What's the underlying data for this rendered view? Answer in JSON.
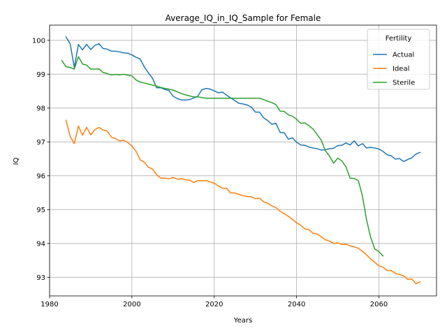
{
  "chart_data": {
    "type": "line",
    "title": "Average_IQ_in_IQ_Sample for Female",
    "xlabel": "Years",
    "ylabel": "IQ",
    "xlim": [
      1980,
      2074
    ],
    "ylim": [
      92.45,
      100.45
    ],
    "xticks": [
      1980,
      2000,
      2020,
      2040,
      2060
    ],
    "yticks": [
      93,
      94,
      95,
      96,
      97,
      98,
      99,
      100
    ],
    "grid": true,
    "legend": {
      "title": "Fertility",
      "placement": "top-right"
    },
    "series": [
      {
        "name": "Actual",
        "color": "#1f77b4",
        "points": [
          [
            1984,
            100.1
          ],
          [
            1985,
            99.9
          ],
          [
            1986,
            99.2
          ],
          [
            1987,
            99.88
          ],
          [
            1988,
            99.72
          ],
          [
            1989,
            99.88
          ],
          [
            1990,
            99.73
          ],
          [
            1991,
            99.85
          ],
          [
            1992,
            99.9
          ],
          [
            1993,
            99.76
          ],
          [
            1994,
            99.74
          ],
          [
            1995,
            99.68
          ],
          [
            1996,
            99.68
          ],
          [
            1997,
            99.66
          ],
          [
            1998,
            99.63
          ],
          [
            1999,
            99.62
          ],
          [
            2000,
            99.57
          ],
          [
            2001,
            99.5
          ],
          [
            2002,
            99.45
          ],
          [
            2003,
            99.22
          ],
          [
            2004,
            99.04
          ],
          [
            2005,
            98.88
          ],
          [
            2006,
            98.6
          ],
          [
            2007,
            98.6
          ],
          [
            2008,
            98.55
          ],
          [
            2009,
            98.52
          ],
          [
            2010,
            98.35
          ],
          [
            2011,
            98.28
          ],
          [
            2012,
            98.24
          ],
          [
            2013,
            98.24
          ],
          [
            2014,
            98.25
          ],
          [
            2015,
            98.3
          ],
          [
            2016,
            98.35
          ],
          [
            2017,
            98.54
          ],
          [
            2018,
            98.58
          ],
          [
            2019,
            98.56
          ],
          [
            2020,
            98.51
          ],
          [
            2021,
            98.45
          ],
          [
            2022,
            98.47
          ],
          [
            2023,
            98.38
          ],
          [
            2024,
            98.3
          ],
          [
            2025,
            98.22
          ],
          [
            2026,
            98.14
          ],
          [
            2027,
            98.12
          ],
          [
            2028,
            98.09
          ],
          [
            2029,
            98.03
          ],
          [
            2030,
            97.88
          ],
          [
            2031,
            97.88
          ],
          [
            2032,
            97.71
          ],
          [
            2033,
            97.63
          ],
          [
            2034,
            97.52
          ],
          [
            2035,
            97.55
          ],
          [
            2036,
            97.28
          ],
          [
            2037,
            97.27
          ],
          [
            2038,
            97.08
          ],
          [
            2039,
            97.12
          ],
          [
            2040,
            96.99
          ],
          [
            2041,
            96.91
          ],
          [
            2042,
            96.9
          ],
          [
            2043,
            96.85
          ],
          [
            2044,
            96.82
          ],
          [
            2045,
            96.8
          ],
          [
            2046,
            96.76
          ],
          [
            2047,
            96.77
          ],
          [
            2048,
            96.8
          ],
          [
            2049,
            96.81
          ],
          [
            2050,
            96.89
          ],
          [
            2051,
            96.9
          ],
          [
            2052,
            96.97
          ],
          [
            2053,
            96.91
          ],
          [
            2054,
            97.03
          ],
          [
            2055,
            96.88
          ],
          [
            2056,
            96.95
          ],
          [
            2057,
            96.82
          ],
          [
            2058,
            96.84
          ],
          [
            2059,
            96.82
          ],
          [
            2060,
            96.79
          ],
          [
            2061,
            96.72
          ],
          [
            2062,
            96.62
          ],
          [
            2063,
            96.59
          ],
          [
            2064,
            96.49
          ],
          [
            2065,
            96.51
          ],
          [
            2066,
            96.42
          ],
          [
            2067,
            96.48
          ],
          [
            2068,
            96.53
          ],
          [
            2069,
            96.64
          ],
          [
            2070,
            96.69
          ]
        ]
      },
      {
        "name": "Ideal",
        "color": "#ff7f0e",
        "points": [
          [
            1984,
            97.64
          ],
          [
            1985,
            97.16
          ],
          [
            1986,
            96.95
          ],
          [
            1987,
            97.47
          ],
          [
            1988,
            97.2
          ],
          [
            1989,
            97.43
          ],
          [
            1990,
            97.21
          ],
          [
            1991,
            97.36
          ],
          [
            1992,
            97.43
          ],
          [
            1993,
            97.35
          ],
          [
            1994,
            97.32
          ],
          [
            1995,
            97.14
          ],
          [
            1996,
            97.1
          ],
          [
            1997,
            97.03
          ],
          [
            1998,
            97.05
          ],
          [
            1999,
            96.98
          ],
          [
            2000,
            96.88
          ],
          [
            2001,
            96.72
          ],
          [
            2002,
            96.47
          ],
          [
            2003,
            96.4
          ],
          [
            2004,
            96.25
          ],
          [
            2005,
            96.2
          ],
          [
            2006,
            96.03
          ],
          [
            2007,
            95.93
          ],
          [
            2008,
            95.93
          ],
          [
            2009,
            95.91
          ],
          [
            2010,
            95.95
          ],
          [
            2011,
            95.9
          ],
          [
            2012,
            95.91
          ],
          [
            2013,
            95.88
          ],
          [
            2014,
            95.87
          ],
          [
            2015,
            95.8
          ],
          [
            2016,
            95.86
          ],
          [
            2017,
            95.85
          ],
          [
            2018,
            95.86
          ],
          [
            2019,
            95.82
          ],
          [
            2020,
            95.78
          ],
          [
            2021,
            95.7
          ],
          [
            2022,
            95.63
          ],
          [
            2023,
            95.63
          ],
          [
            2024,
            95.49
          ],
          [
            2025,
            95.49
          ],
          [
            2026,
            95.45
          ],
          [
            2027,
            95.41
          ],
          [
            2028,
            95.39
          ],
          [
            2029,
            95.38
          ],
          [
            2030,
            95.32
          ],
          [
            2031,
            95.34
          ],
          [
            2032,
            95.23
          ],
          [
            2033,
            95.19
          ],
          [
            2034,
            95.11
          ],
          [
            2035,
            95.06
          ],
          [
            2036,
            94.95
          ],
          [
            2037,
            94.88
          ],
          [
            2038,
            94.8
          ],
          [
            2039,
            94.71
          ],
          [
            2040,
            94.61
          ],
          [
            2041,
            94.54
          ],
          [
            2042,
            94.43
          ],
          [
            2043,
            94.41
          ],
          [
            2044,
            94.3
          ],
          [
            2045,
            94.28
          ],
          [
            2046,
            94.2
          ],
          [
            2047,
            94.11
          ],
          [
            2048,
            94.07
          ],
          [
            2049,
            94.0
          ],
          [
            2050,
            94.02
          ],
          [
            2051,
            93.97
          ],
          [
            2052,
            93.98
          ],
          [
            2053,
            93.93
          ],
          [
            2054,
            93.9
          ],
          [
            2055,
            93.86
          ],
          [
            2056,
            93.77
          ],
          [
            2057,
            93.66
          ],
          [
            2058,
            93.54
          ],
          [
            2059,
            93.44
          ],
          [
            2060,
            93.34
          ],
          [
            2061,
            93.3
          ],
          [
            2062,
            93.2
          ],
          [
            2063,
            93.2
          ],
          [
            2064,
            93.12
          ],
          [
            2065,
            93.08
          ],
          [
            2066,
            93.04
          ],
          [
            2067,
            92.94
          ],
          [
            2068,
            92.95
          ],
          [
            2069,
            92.81
          ],
          [
            2070,
            92.87
          ]
        ]
      },
      {
        "name": "Sterile",
        "color": "#2ca02c",
        "points": [
          [
            1983,
            99.4
          ],
          [
            1984,
            99.22
          ],
          [
            1985,
            99.2
          ],
          [
            1986,
            99.15
          ],
          [
            1987,
            99.52
          ],
          [
            1988,
            99.3
          ],
          [
            1989,
            99.27
          ],
          [
            1990,
            99.15
          ],
          [
            1991,
            99.15
          ],
          [
            1992,
            99.16
          ],
          [
            1993,
            99.05
          ],
          [
            1994,
            99.02
          ],
          [
            1995,
            98.98
          ],
          [
            1996,
            98.99
          ],
          [
            1997,
            98.98
          ],
          [
            1998,
            99.0
          ],
          [
            1999,
            98.97
          ],
          [
            2000,
            98.95
          ],
          [
            2001,
            98.83
          ],
          [
            2002,
            98.77
          ],
          [
            2003,
            98.74
          ],
          [
            2004,
            98.71
          ],
          [
            2005,
            98.68
          ],
          [
            2006,
            98.65
          ],
          [
            2007,
            98.61
          ],
          [
            2008,
            98.58
          ],
          [
            2009,
            98.56
          ],
          [
            2010,
            98.53
          ],
          [
            2011,
            98.48
          ],
          [
            2012,
            98.43
          ],
          [
            2013,
            98.39
          ],
          [
            2014,
            98.36
          ],
          [
            2015,
            98.33
          ],
          [
            2016,
            98.33
          ],
          [
            2017,
            98.31
          ],
          [
            2018,
            98.29
          ],
          [
            2020,
            98.29
          ],
          [
            2025,
            98.29
          ],
          [
            2030,
            98.29
          ],
          [
            2031,
            98.29
          ],
          [
            2032,
            98.25
          ],
          [
            2033,
            98.2
          ],
          [
            2034,
            98.16
          ],
          [
            2035,
            98.1
          ],
          [
            2036,
            97.91
          ],
          [
            2037,
            97.9
          ],
          [
            2038,
            97.8
          ],
          [
            2039,
            97.76
          ],
          [
            2040,
            97.67
          ],
          [
            2041,
            97.55
          ],
          [
            2042,
            97.56
          ],
          [
            2043,
            97.48
          ],
          [
            2044,
            97.38
          ],
          [
            2045,
            97.22
          ],
          [
            2046,
            97.05
          ],
          [
            2047,
            96.74
          ],
          [
            2048,
            96.58
          ],
          [
            2049,
            96.37
          ],
          [
            2050,
            96.52
          ],
          [
            2051,
            96.44
          ],
          [
            2052,
            96.26
          ],
          [
            2053,
            95.93
          ],
          [
            2054,
            95.92
          ],
          [
            2055,
            95.86
          ],
          [
            2056,
            95.4
          ],
          [
            2057,
            94.7
          ],
          [
            2058,
            94.18
          ],
          [
            2059,
            93.84
          ],
          [
            2060,
            93.76
          ],
          [
            2061,
            93.63
          ]
        ]
      }
    ]
  }
}
